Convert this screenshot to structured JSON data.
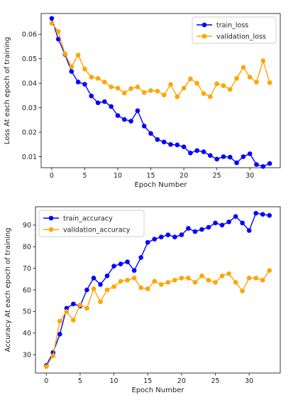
{
  "chart_data": [
    {
      "type": "line",
      "xlabel": "Epoch Number",
      "ylabel": "Loss At each epoch of training",
      "xlim": [
        -1.6,
        34.6
      ],
      "ylim": [
        0.0055,
        0.0685
      ],
      "xticks": [
        0,
        5,
        10,
        15,
        20,
        25,
        30
      ],
      "yticks": [
        0.01,
        0.02,
        0.03,
        0.04,
        0.05,
        0.06
      ],
      "ytick_labels": [
        "0.01",
        "0.02",
        "0.03",
        "0.04",
        "0.05",
        "0.06"
      ],
      "legend_position": "top-right",
      "x": [
        0,
        1,
        2,
        3,
        4,
        5,
        6,
        7,
        8,
        9,
        10,
        11,
        12,
        13,
        14,
        15,
        16,
        17,
        18,
        19,
        20,
        21,
        22,
        23,
        24,
        25,
        26,
        27,
        28,
        29,
        30,
        31,
        32,
        33
      ],
      "series": [
        {
          "name": "train_loss",
          "color": "#0000ff",
          "values": [
            0.0665,
            0.058,
            0.0518,
            0.0448,
            0.0405,
            0.0396,
            0.0348,
            0.032,
            0.0325,
            0.0305,
            0.0268,
            0.0252,
            0.0245,
            0.0288,
            0.0225,
            0.0195,
            0.017,
            0.016,
            0.015,
            0.0148,
            0.014,
            0.0115,
            0.0125,
            0.012,
            0.0105,
            0.009,
            0.01,
            0.0098,
            0.0075,
            0.01,
            0.0112,
            0.0068,
            0.006,
            0.0072
          ]
        },
        {
          "name": "validation_loss",
          "color": "#ffa500",
          "values": [
            0.0645,
            0.0612,
            0.052,
            0.0468,
            0.0515,
            0.0458,
            0.0425,
            0.042,
            0.0405,
            0.0385,
            0.038,
            0.036,
            0.0378,
            0.0385,
            0.0362,
            0.037,
            0.0368,
            0.0352,
            0.0395,
            0.0345,
            0.038,
            0.0418,
            0.04,
            0.0358,
            0.0345,
            0.0398,
            0.039,
            0.0375,
            0.042,
            0.0465,
            0.0425,
            0.0405,
            0.0492,
            0.0402
          ]
        }
      ]
    },
    {
      "type": "line",
      "xlabel": "Epoch Number",
      "ylabel": "Accuracy At each epoch of training",
      "xlim": [
        -1.6,
        34.6
      ],
      "ylim": [
        21.5,
        98.5
      ],
      "xticks": [
        0,
        5,
        10,
        15,
        20,
        25,
        30
      ],
      "yticks": [
        30,
        40,
        50,
        60,
        70,
        80,
        90
      ],
      "ytick_labels": [
        "30",
        "40",
        "50",
        "60",
        "70",
        "80",
        "90"
      ],
      "legend_position": "top-left",
      "x": [
        0,
        1,
        2,
        3,
        4,
        5,
        6,
        7,
        8,
        9,
        10,
        11,
        12,
        13,
        14,
        15,
        16,
        17,
        18,
        19,
        20,
        21,
        22,
        23,
        24,
        25,
        26,
        27,
        28,
        29,
        30,
        31,
        32,
        33
      ],
      "series": [
        {
          "name": "train_accuracy",
          "color": "#0000ff",
          "values": [
            25,
            31,
            39.5,
            51.5,
            53.5,
            52.5,
            60,
            65.5,
            62.5,
            66.5,
            71,
            72,
            73,
            69,
            75,
            82,
            83.5,
            84.5,
            85.5,
            84.5,
            85.5,
            88.5,
            87,
            88,
            89,
            91,
            90,
            91.5,
            94,
            91,
            87.5,
            95.5,
            95,
            94.5
          ]
        },
        {
          "name": "validation_accuracy",
          "color": "#ffa500",
          "values": [
            24.5,
            29.5,
            45.5,
            50,
            46,
            53,
            51.5,
            60.5,
            54.5,
            60,
            61.5,
            64,
            64.5,
            65.5,
            61,
            60.5,
            64,
            62.5,
            63.5,
            64.5,
            65.5,
            65.5,
            63.5,
            66.5,
            64.5,
            63.5,
            66.5,
            67.5,
            63.5,
            59.5,
            65.5,
            65.5,
            64.5,
            69
          ]
        }
      ]
    }
  ]
}
